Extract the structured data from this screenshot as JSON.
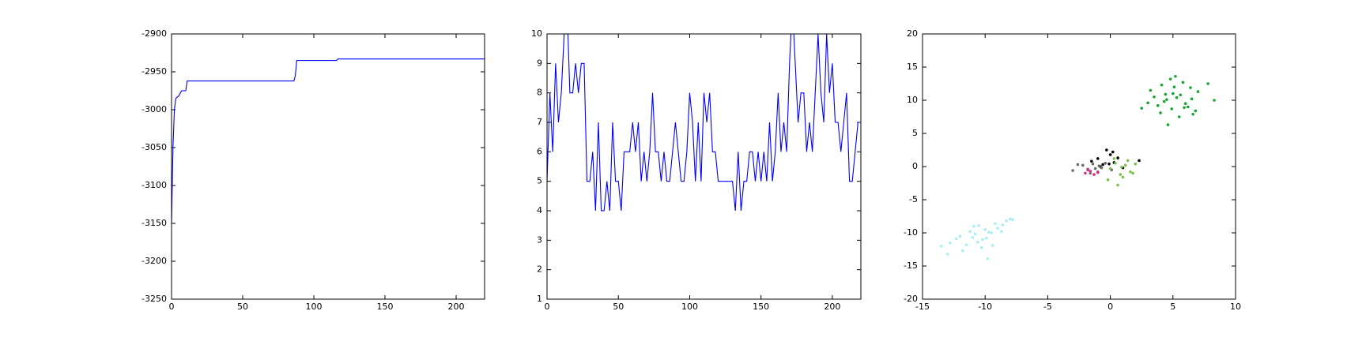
{
  "chart_data": [
    {
      "type": "line",
      "color": "#0000ff",
      "x": [
        0,
        1,
        2,
        3,
        5,
        7,
        10,
        11,
        86,
        87,
        88,
        116,
        117,
        220
      ],
      "values": [
        -3150,
        -3050,
        -3000,
        -2985,
        -2982,
        -2975,
        -2975,
        -2962,
        -2962,
        -2955,
        -2935,
        -2935,
        -2933,
        -2933
      ],
      "xlim": [
        0,
        220
      ],
      "xticks": [
        0,
        50,
        100,
        150,
        200
      ],
      "ylim": [
        -3250,
        -2900
      ],
      "yticks": [
        -3250,
        -3200,
        -3150,
        -3100,
        -3050,
        -3000,
        -2950,
        -2900
      ]
    },
    {
      "type": "line",
      "color": "#0000ff",
      "x": [
        0,
        2,
        4,
        6,
        8,
        10,
        12,
        14,
        16,
        18,
        20,
        22,
        24,
        26,
        28,
        30,
        32,
        34,
        36,
        38,
        40,
        42,
        44,
        46,
        48,
        50,
        52,
        54,
        56,
        58,
        60,
        62,
        64,
        66,
        68,
        70,
        72,
        74,
        76,
        78,
        80,
        82,
        84,
        86,
        88,
        90,
        92,
        94,
        96,
        98,
        100,
        102,
        104,
        106,
        108,
        110,
        112,
        114,
        116,
        118,
        120,
        122,
        124,
        126,
        128,
        130,
        132,
        134,
        136,
        138,
        140,
        142,
        144,
        146,
        148,
        150,
        152,
        154,
        156,
        158,
        160,
        162,
        164,
        166,
        168,
        170,
        172,
        174,
        176,
        178,
        180,
        182,
        184,
        186,
        188,
        190,
        192,
        194,
        196,
        198,
        200,
        202,
        204,
        206,
        208,
        210,
        212,
        214,
        216,
        218,
        220
      ],
      "values": [
        5,
        8,
        6,
        9,
        7,
        8,
        10,
        11,
        8,
        8,
        9,
        8,
        9,
        9,
        5,
        5,
        6,
        4,
        7,
        4,
        4,
        5,
        4,
        7,
        5,
        5,
        4,
        6,
        6,
        6,
        7,
        6,
        7,
        5,
        6,
        5,
        6,
        8,
        6,
        6,
        5,
        6,
        5,
        5,
        6,
        7,
        6,
        5,
        5,
        6,
        8,
        7,
        5,
        7,
        5,
        8,
        7,
        8,
        6,
        6,
        5,
        5,
        5,
        5,
        5,
        5,
        4,
        6,
        4,
        5,
        5,
        6,
        6,
        5,
        6,
        5,
        6,
        5,
        7,
        5,
        6,
        8,
        6,
        7,
        6,
        9,
        11,
        9,
        7,
        8,
        8,
        6,
        7,
        6,
        8,
        10,
        8,
        7,
        10,
        8,
        9,
        7,
        7,
        6,
        7,
        8,
        5,
        5,
        6,
        7,
        7
      ],
      "xlim": [
        0,
        220
      ],
      "xticks": [
        0,
        50,
        100,
        150,
        200
      ],
      "ylim": [
        1,
        10
      ],
      "yticks": [
        1,
        2,
        3,
        4,
        5,
        6,
        7,
        8,
        9,
        10
      ]
    },
    {
      "type": "scatter",
      "xlim": [
        -15,
        10
      ],
      "xticks": [
        -15,
        -10,
        -5,
        0,
        5,
        10
      ],
      "ylim": [
        -20,
        20
      ],
      "yticks": [
        -20,
        -15,
        -10,
        -5,
        0,
        5,
        10,
        15,
        20
      ],
      "series": [
        {
          "color": "#17a632",
          "x": [
            3.2,
            3.8,
            4.1,
            4.5,
            4.9,
            5.2,
            5.6,
            6.0,
            6.4,
            6.8,
            3.5,
            4.3,
            5.0,
            5.8,
            6.5,
            4.0,
            4.8,
            5.5,
            6.2,
            7.0,
            3.0,
            5.3,
            4.6,
            5.9,
            7.8,
            2.5,
            6.6,
            5.1,
            4.4,
            8.3
          ],
          "values": [
            11.5,
            9.2,
            12.3,
            10.1,
            8.7,
            13.6,
            10.8,
            9.5,
            11.9,
            8.4,
            10.5,
            9.8,
            11.0,
            12.7,
            10.2,
            8.1,
            13.2,
            7.5,
            9.0,
            11.3,
            9.6,
            10.4,
            6.3,
            8.9,
            12.5,
            8.8,
            7.9,
            12.0,
            10.9,
            10.0
          ]
        },
        {
          "color": "#a8eef2",
          "x": [
            -13.5,
            -12.8,
            -12.0,
            -11.5,
            -11.2,
            -10.8,
            -10.5,
            -10.2,
            -10.0,
            -9.8,
            -9.5,
            -9.2,
            -9.0,
            -8.7,
            -8.3,
            -8.0,
            -11.8,
            -10.6,
            -9.9,
            -9.4,
            -10.9,
            -12.3,
            -8.6,
            -9.7,
            -10.3,
            -7.8,
            -11.0,
            -13.0
          ],
          "values": [
            -12.0,
            -11.5,
            -10.5,
            -11.8,
            -9.8,
            -10.2,
            -8.9,
            -11.0,
            -9.5,
            -13.9,
            -10.0,
            -8.6,
            -9.3,
            -9.8,
            -8.2,
            -7.9,
            -12.7,
            -11.4,
            -10.8,
            -11.9,
            -9.0,
            -10.9,
            -8.8,
            -9.9,
            -12.2,
            -8.0,
            -10.7,
            -13.2
          ]
        },
        {
          "color": "#000000",
          "x": [
            -1.5,
            -1.0,
            -0.6,
            -0.3,
            0.0,
            0.3,
            0.6,
            -0.8,
            0.2,
            2.3,
            -0.1,
            1.0
          ],
          "values": [
            0.8,
            1.2,
            0.3,
            2.5,
            1.8,
            0.6,
            1.3,
            0.0,
            2.2,
            0.9,
            0.4,
            -0.2
          ]
        },
        {
          "color": "#6b6b6b",
          "x": [
            -3.0,
            -2.2,
            -1.8,
            -1.4,
            -1.0,
            -0.7,
            -0.4,
            -1.6,
            -0.9,
            -2.6,
            0.1,
            -1.2
          ],
          "values": [
            -0.6,
            0.2,
            -0.4,
            0.4,
            -0.8,
            -0.2,
            0.5,
            -1.0,
            0.1,
            0.3,
            -0.5,
            -0.3
          ]
        },
        {
          "color": "#d4308a",
          "x": [
            -2.0,
            -1.6,
            -1.3,
            -1.0,
            -1.8
          ],
          "values": [
            -1.0,
            -0.7,
            -1.2,
            -0.9,
            -0.5
          ]
        },
        {
          "color": "#7cc24a",
          "x": [
            0.0,
            0.4,
            0.8,
            1.2,
            1.6,
            2.0,
            0.6,
            1.0,
            1.4,
            -0.2,
            0.9,
            1.8,
            0.3
          ],
          "values": [
            -0.3,
            0.5,
            -1.2,
            0.2,
            -0.8,
            0.4,
            -2.8,
            -1.6,
            0.9,
            -2.0,
            -0.1,
            -1.0,
            1.2
          ]
        }
      ]
    }
  ]
}
